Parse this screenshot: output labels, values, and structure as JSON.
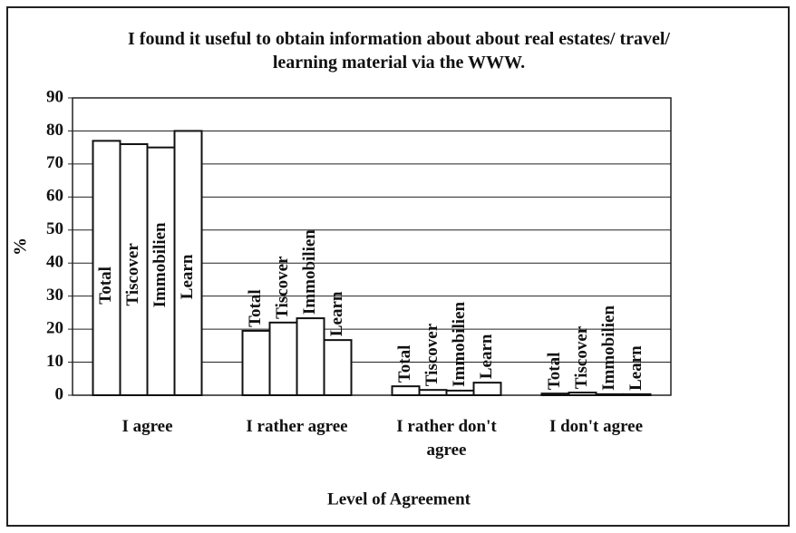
{
  "chart_data": {
    "type": "bar",
    "title": "I found it useful to obtain information about about real estates/ travel/ learning material via the WWW.",
    "x_label": "Level of Agreement",
    "y_label": "%",
    "categories": [
      "I agree",
      "I rather agree",
      "I rather don't agree",
      "I don't agree"
    ],
    "series": [
      {
        "name": "Total",
        "color": "#ffffff",
        "values": [
          77,
          19.5,
          2.7,
          0.5
        ]
      },
      {
        "name": "Tiscover",
        "color": "#ffffff",
        "values": [
          76,
          22,
          1.6,
          0.8
        ]
      },
      {
        "name": "Immobilien",
        "color": "#ffffff",
        "values": [
          75,
          23.3,
          1.4,
          0.3
        ]
      },
      {
        "name": "Learn",
        "color": "#ffffff",
        "values": [
          80,
          16.7,
          3.8,
          0.3
        ]
      }
    ],
    "ylim": [
      0,
      90
    ],
    "yticks": [
      0,
      10,
      20,
      30,
      40,
      50,
      60,
      70,
      80,
      90
    ],
    "grid": true
  }
}
